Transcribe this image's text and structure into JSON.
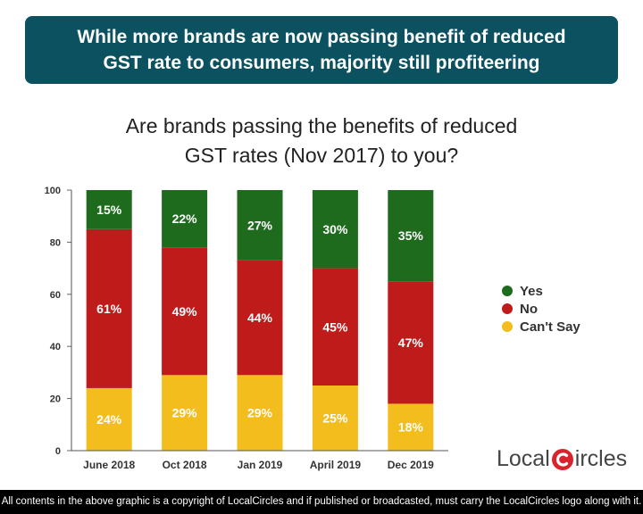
{
  "banner": {
    "line1": "While more brands are now passing benefit of reduced",
    "line2": "GST rate to consumers, majority still profiteering"
  },
  "logo": {
    "left": "Local",
    "right": "ircles",
    "icon": "circle-c-logo-icon"
  },
  "footer": {
    "text": "All contents in the above graphic is a copyright of LocalCircles and if published or broadcasted, must carry the LocalCircles logo along with it."
  },
  "colors": {
    "yes": "#1e6b1e",
    "no": "#bf1b1b",
    "cant_say": "#f4bd1e",
    "banner": "#0b5160",
    "logo_red": "#d9232d"
  },
  "chart_data": {
    "type": "bar",
    "stacked": true,
    "title": {
      "line1": "Are brands passing the benefits of reduced",
      "line2": "GST rates (Nov 2017) to you?"
    },
    "categories": [
      "June 2018",
      "Oct 2018",
      "Jan 2019",
      "April 2019",
      "Dec 2019"
    ],
    "series": [
      {
        "name": "Can't Say",
        "values": [
          24,
          29,
          29,
          25,
          18
        ]
      },
      {
        "name": "No",
        "values": [
          61,
          49,
          44,
          45,
          47
        ]
      },
      {
        "name": "Yes",
        "values": [
          15,
          22,
          27,
          30,
          35
        ]
      }
    ],
    "ylim": [
      0,
      100
    ],
    "yticks": [
      0,
      20,
      40,
      60,
      80,
      100
    ],
    "value_suffix": "%",
    "legend": {
      "position": "right",
      "order": [
        "Yes",
        "No",
        "Can't Say"
      ]
    },
    "grid": false
  }
}
